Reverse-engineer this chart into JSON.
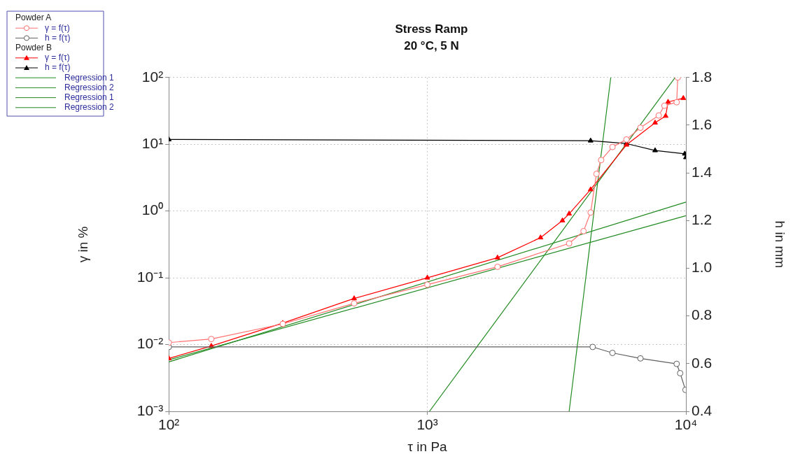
{
  "chart_data": {
    "type": "line",
    "title": "Stress Ramp",
    "subtitle": "20 °C, 5 N",
    "xlabel": "τ in Pa",
    "ylabel": "γ in %",
    "y2label": "h in mm",
    "log": "xy",
    "grid": true,
    "legend": "top left",
    "annotations": [
      "Powder A",
      "Powder B"
    ],
    "xlim": [
      100,
      10000
    ],
    "xticks": [
      {
        "value": 100,
        "label": "10²"
      },
      {
        "value": 1000,
        "label": "10³"
      },
      {
        "value": 10000,
        "label": "10⁴"
      }
    ],
    "ylim": [
      0.001,
      100
    ],
    "yticks": [
      {
        "value": 0.001,
        "label": "10⁻³"
      },
      {
        "value": 0.01,
        "label": "10⁻²"
      },
      {
        "value": 0.1,
        "label": "10⁻¹"
      },
      {
        "value": 1,
        "label": "10⁰"
      },
      {
        "value": 10,
        "label": "10¹"
      },
      {
        "value": 100,
        "label": "10²"
      }
    ],
    "y2lim": [
      0.4,
      1.8
    ],
    "y2ticks": [
      0.4,
      0.6,
      0.8,
      {
        "value": 1,
        "label": "1.0"
      },
      1.2,
      1.4,
      1.6,
      1.8
    ],
    "series": [
      {
        "name": "γ = f(τ)",
        "marker": "circle",
        "color": "#ff7070",
        "x": [
          100,
          146,
          276,
          521,
          1000,
          1868,
          3535,
          4018,
          4280,
          4510,
          4700,
          5200,
          5890,
          6670,
          7850,
          8260,
          9210,
          9300
        ],
        "values": [
          0.0107,
          0.0121,
          0.0204,
          0.0415,
          0.079,
          0.146,
          0.327,
          0.5,
          0.95,
          3.6,
          5.8,
          9.1,
          11.8,
          17.7,
          27,
          37.8,
          42.6,
          100
        ]
      },
      {
        "name": "h = f(τ)",
        "marker": "circle",
        "axis": "y2",
        "color": "#606060",
        "x": [
          100,
          4360,
          5200,
          6670,
          9210,
          9500,
          9960
        ],
        "values": [
          0.67,
          0.67,
          0.645,
          0.622,
          0.599,
          0.56,
          0.49
        ]
      },
      {
        "name": "γ = f(τ)",
        "marker": "triangle",
        "color": "#ff0000",
        "x": [
          100,
          146,
          276,
          521,
          1000,
          1868,
          2740,
          3330,
          3535,
          4280,
          5890,
          7600,
          8350,
          8530,
          9770
        ],
        "values": [
          0.0062,
          0.0095,
          0.021,
          0.049,
          0.1,
          0.2,
          0.4,
          0.72,
          0.91,
          2.1,
          9.8,
          21,
          26.5,
          43,
          49
        ]
      },
      {
        "name": "h = f(τ)",
        "marker": "triangle",
        "axis": "y2",
        "color": "#000000",
        "x": [
          100,
          4280,
          5890,
          7600,
          9900,
          10000
        ],
        "values": [
          1.54,
          1.535,
          1.523,
          1.494,
          1.48,
          1.465
        ]
      },
      {
        "name": "Regression 1",
        "marker": "none",
        "color": "#228b22",
        "x": [
          100,
          10000
        ],
        "values": [
          0.0055,
          1.36
        ]
      },
      {
        "name": "Regression 2",
        "marker": "none",
        "color": "#228b22",
        "x": [
          3535,
          5120
        ],
        "values": [
          0.001,
          100
        ]
      },
      {
        "name": "Regression 1",
        "marker": "none",
        "color": "#228b22",
        "x": [
          100,
          10000
        ],
        "values": [
          0.0059,
          0.85
        ]
      },
      {
        "name": "Regression 2",
        "marker": "none",
        "color": "#228b22",
        "x": [
          1019,
          9080
        ],
        "values": [
          0.001,
          100
        ]
      }
    ]
  }
}
